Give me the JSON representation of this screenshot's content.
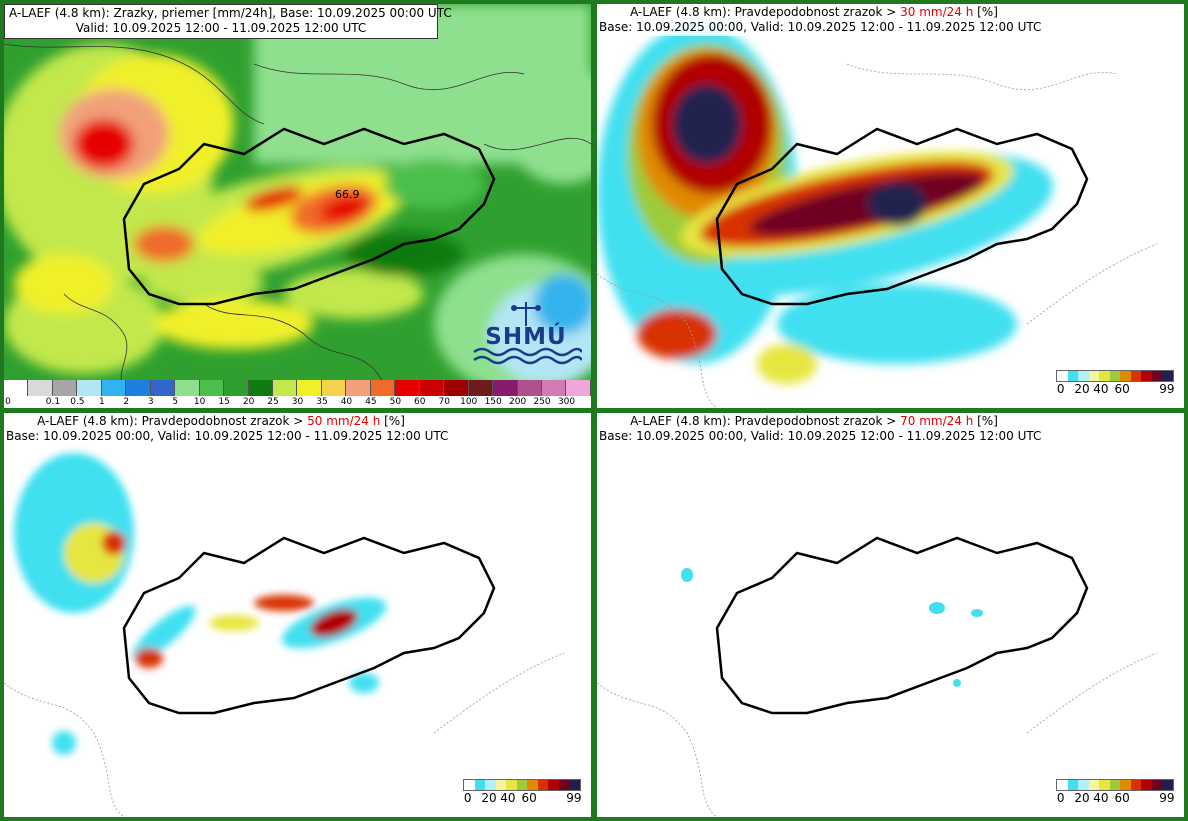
{
  "panels": {
    "p1": {
      "title_line1": "A-LAEF (4.8 km): Zrazky, priemer [mm/24h], Base: 10.09.2025 00:00 UTC",
      "title_line2": "Valid: 10.09.2025 12:00 - 11.09.2025 12:00 UTC",
      "max_value": "66.9",
      "logo_text": "SHMÚ",
      "legend_labels": [
        "0",
        "0.1",
        "0.5",
        "1",
        "2",
        "3",
        "5",
        "10",
        "15",
        "20",
        "25",
        "30",
        "35",
        "40",
        "45",
        "50",
        "60",
        "70",
        "100",
        "150",
        "200",
        "250",
        "300"
      ],
      "legend_colors": [
        "#ffffff",
        "#d9d9d9",
        "#a6a6a6",
        "#b3e6f5",
        "#33b3ee",
        "#1f7fde",
        "#3366cc",
        "#8ee08e",
        "#4cbf4c",
        "#2fa02f",
        "#117a11",
        "#c2e84c",
        "#f0f02a",
        "#f5d24c",
        "#f2a07a",
        "#f06a2a",
        "#e60000",
        "#c80000",
        "#a00000",
        "#701c1c",
        "#8a1a6e",
        "#b0508e",
        "#d27ab2",
        "#f0a6d8"
      ]
    },
    "p2": {
      "title_prefix": "A-LAEF (4.8 km): Pravdepodobnost zrazok > ",
      "title_threshold": "30 mm/24 h",
      "title_suffix": " [%]",
      "title_line2": "Base: 10.09.2025 00:00, Valid: 10.09.2025 12:00 - 11.09.2025 12:00 UTC"
    },
    "p3": {
      "title_prefix": "A-LAEF (4.8 km): Pravdepodobnost zrazok > ",
      "title_threshold": "50 mm/24 h",
      "title_suffix": " [%]",
      "title_line2": "Base: 10.09.2025 00:00, Valid: 10.09.2025 12:00 - 11.09.2025 12:00 UTC"
    },
    "p4": {
      "title_prefix": "A-LAEF (4.8 km): Pravdepodobnost zrazok > ",
      "title_threshold": "70 mm/24 h",
      "title_suffix": " [%]",
      "title_line2": "Base: 10.09.2025 00:00, Valid: 10.09.2025 12:00 - 11.09.2025 12:00 UTC"
    }
  },
  "prob_legend": {
    "labels": [
      "0",
      "20",
      "40",
      "60",
      "99"
    ],
    "colors": [
      "#ffffff",
      "#40e0f0",
      "#b3f0f5",
      "#f5f5a0",
      "#e6e640",
      "#9ccc3a",
      "#e08a00",
      "#d83000",
      "#b00000",
      "#700020",
      "#202050"
    ]
  },
  "colors": {
    "frame": "#1f7a1f",
    "threshold_text": "#e00000"
  }
}
